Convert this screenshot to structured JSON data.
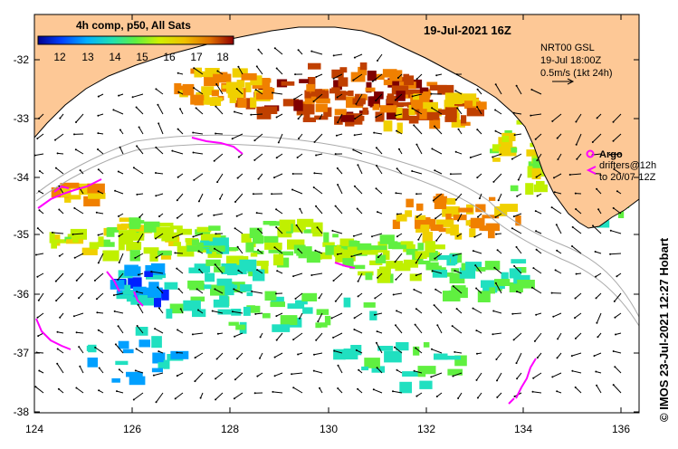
{
  "map": {
    "colorbar_title": "4h comp, p50, All Sats",
    "colorbar_ticks": [
      "12",
      "13",
      "14",
      "15",
      "16",
      "17",
      "18"
    ],
    "date_title": "19-Jul-2021 16Z",
    "info_line1": "NRT00 GSL",
    "info_line2": "19-Jul 18:00Z",
    "info_line3": "0.5m/s (1kt 24h)",
    "argo_label": "Argo",
    "drifters_line1": "drifters@12h",
    "drifters_line2": "to 20/07-12Z",
    "credit": "© IMOS 23-Jul-2021 12:27 Hobart",
    "lat_labels": [
      "-32",
      "-33",
      "-34",
      "-35",
      "-36",
      "-37",
      "-38"
    ],
    "lon_labels": [
      "124",
      "126",
      "128",
      "130",
      "132",
      "134",
      "136"
    ],
    "colors": {
      "land": "#fdc896",
      "sea": "#ffffff",
      "drifter": "#ff00ff",
      "contour": "#aaaaaa",
      "colormap": [
        "#00008f",
        "#0020ff",
        "#00a0ff",
        "#20e0c0",
        "#60f040",
        "#c0f000",
        "#f0d000",
        "#f08000",
        "#c04000",
        "#800000"
      ]
    }
  }
}
